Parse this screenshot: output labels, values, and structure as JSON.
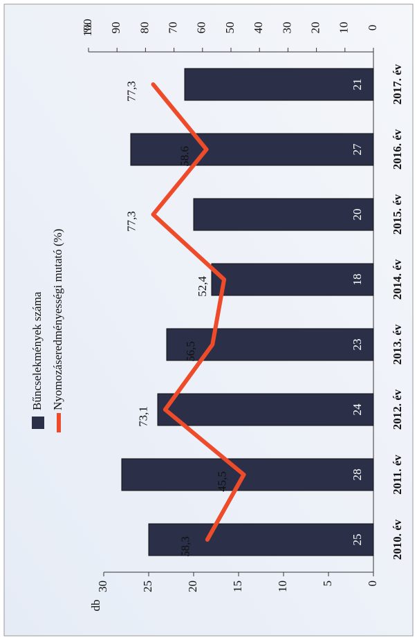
{
  "chart_data": {
    "type": "bar_line",
    "categories": [
      "2010. év",
      "2011. év",
      "2012. év",
      "2013. év",
      "2014. év",
      "2015. év",
      "2016. év",
      "2017. év"
    ],
    "series": [
      {
        "name": "Bűncselekmények száma",
        "type": "bar",
        "color": "#2b2f48",
        "values": [
          25,
          28,
          24,
          23,
          18,
          20,
          27,
          21
        ]
      },
      {
        "name": "Nyomozáseredményességi mutató (%)",
        "type": "line",
        "axis": "y2",
        "color": "#ee4b2b",
        "values": [
          58.3,
          45.5,
          73.1,
          56.5,
          52.4,
          77.3,
          58.6,
          77.3
        ],
        "value_labels": [
          "58,3",
          "45,5",
          "73,1",
          "56,5",
          "52,4",
          "77,3",
          "58.6",
          "77,3"
        ]
      }
    ],
    "ylabel": "db",
    "y2label": "%",
    "ylim": [
      0,
      30
    ],
    "yticks": [
      0,
      5,
      10,
      15,
      20,
      25,
      30
    ],
    "y2lim": [
      0,
      100
    ],
    "y2ticks": [
      0,
      10,
      20,
      30,
      40,
      50,
      60,
      70,
      80,
      90,
      100
    ]
  }
}
